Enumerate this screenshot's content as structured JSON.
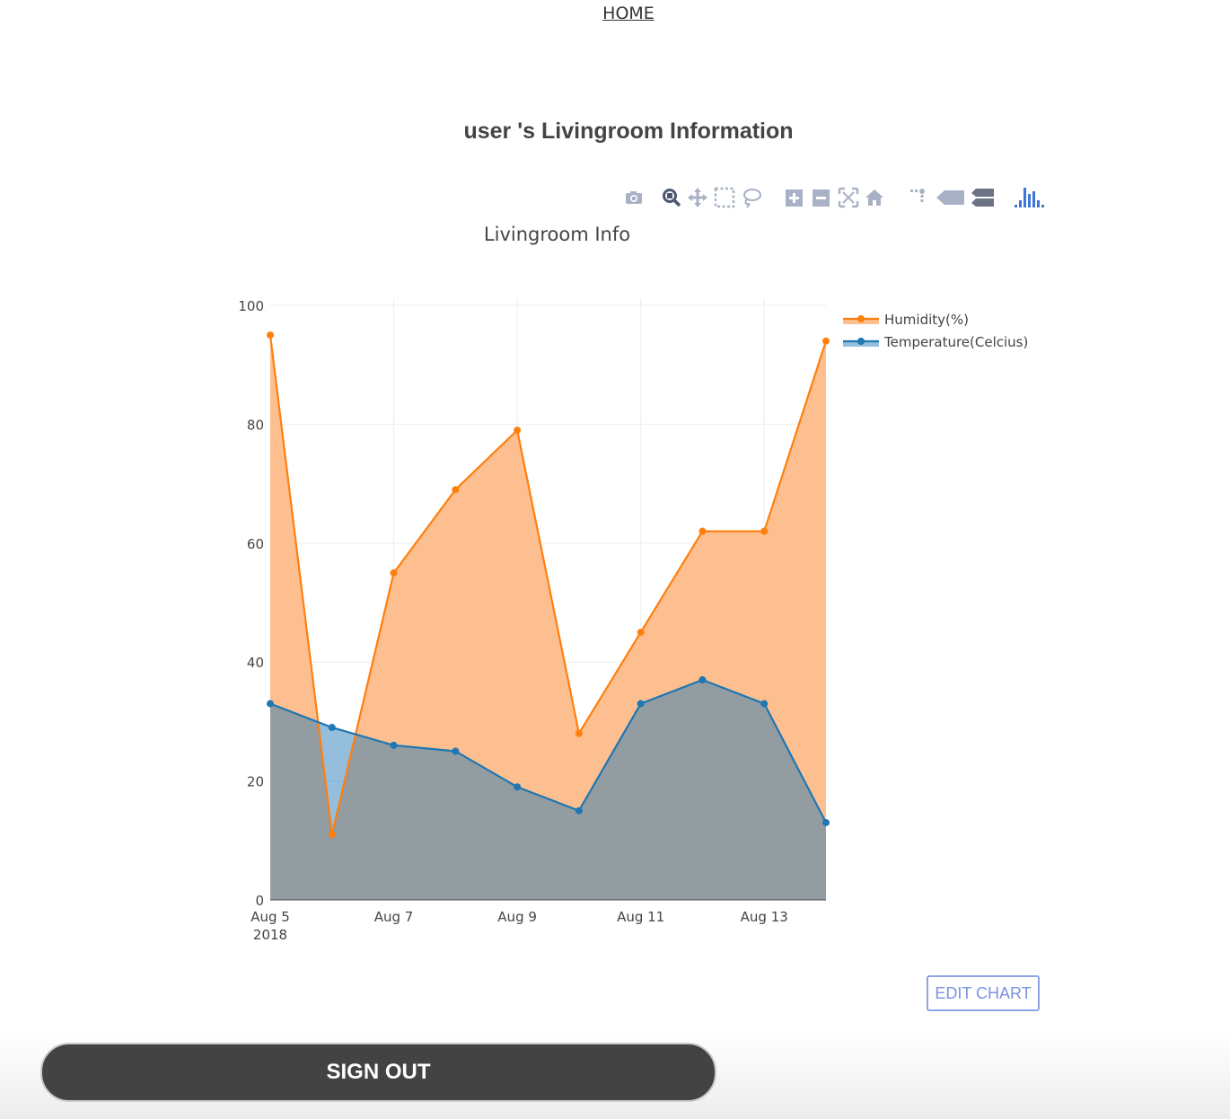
{
  "nav": {
    "home_label": "HOME"
  },
  "page_title": "user 's Livingroom Information",
  "modebar_icons": [
    "camera-icon",
    "zoom-icon",
    "pan-icon",
    "box-select-icon",
    "lasso-select-icon",
    "zoom-in-icon",
    "zoom-out-icon",
    "autoscale-icon",
    "reset-axes-icon",
    "spike-lines-icon",
    "hover-closest-icon",
    "hover-compare-icon",
    "plotly-logo-icon"
  ],
  "chart_data": {
    "type": "area",
    "title": "Livingroom Info",
    "x": [
      "2018-08-05",
      "2018-08-06",
      "2018-08-07",
      "2018-08-08",
      "2018-08-09",
      "2018-08-10",
      "2018-08-11",
      "2018-08-12",
      "2018-08-13",
      "2018-08-14"
    ],
    "x_tick_labels": [
      "Aug 5",
      "Aug 7",
      "Aug 9",
      "Aug 11",
      "Aug 13"
    ],
    "x_tick_sublabel": "2018",
    "ylim": [
      0,
      100
    ],
    "y_ticks": [
      0,
      20,
      40,
      60,
      80,
      100
    ],
    "grid": true,
    "legend_position": "top-right",
    "series": [
      {
        "name": "Humidity(%)",
        "color": "#ff7f0e",
        "fill": "#fdbf8f",
        "values": [
          95,
          11,
          55,
          69,
          79,
          28,
          45,
          62,
          62,
          94
        ]
      },
      {
        "name": "Temperature(Celcius)",
        "color": "#1f77b4",
        "fill": "rgba(31,119,180,0.48)",
        "values": [
          33,
          29,
          26,
          25,
          19,
          15,
          33,
          37,
          33,
          13
        ]
      }
    ]
  },
  "edit_chart_label": "EDIT CHART",
  "sign_out_label": "SIGN OUT"
}
